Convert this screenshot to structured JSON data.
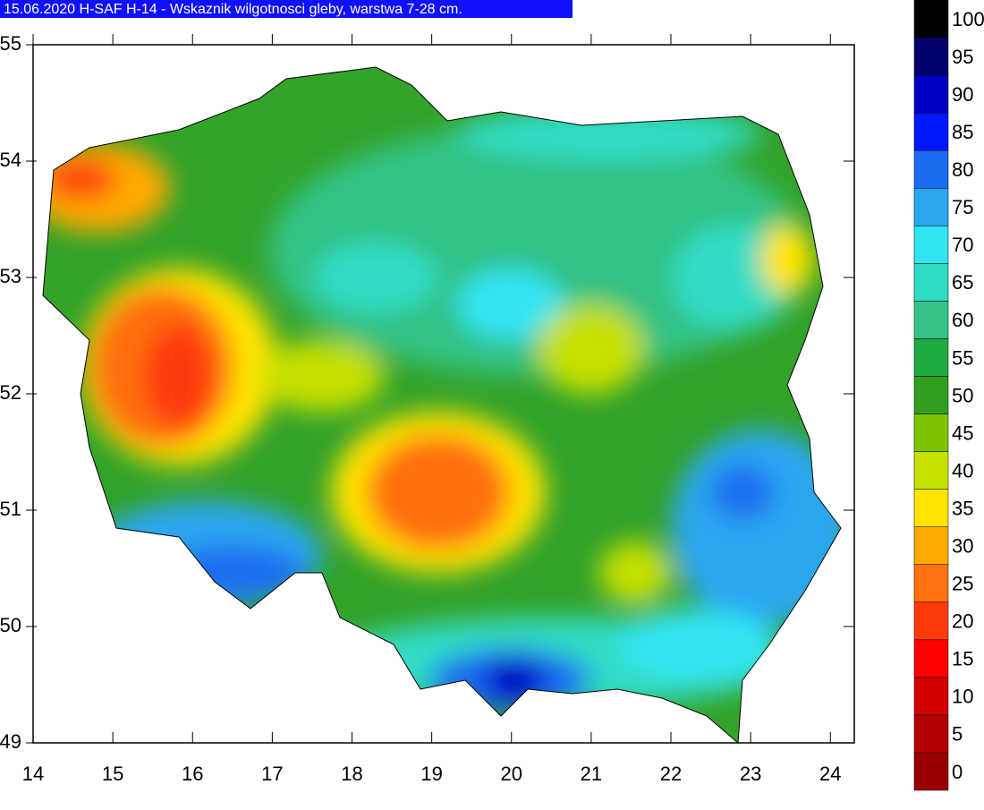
{
  "title": "15.06.2020 H-SAF H-14 - Wskaznik wilgotnosci gleby, warstwa 7-28 cm.",
  "map": {
    "xlim": [
      14,
      24.3
    ],
    "ylim": [
      49,
      55
    ],
    "xticks": [
      14,
      15,
      16,
      17,
      18,
      19,
      20,
      21,
      22,
      23,
      24
    ],
    "yticks": [
      49,
      50,
      51,
      52,
      53,
      54,
      55
    ]
  },
  "legend": {
    "levels": [
      0,
      5,
      10,
      15,
      20,
      25,
      30,
      35,
      40,
      45,
      50,
      55,
      60,
      65,
      70,
      75,
      80,
      85,
      90,
      95,
      100
    ],
    "colors": [
      "#990000",
      "#b30000",
      "#d40000",
      "#ff0000",
      "#ff3a0a",
      "#ff7010",
      "#ffa800",
      "#ffe400",
      "#c6e000",
      "#7cc400",
      "#2f9e1e",
      "#1eaa40",
      "#33c283",
      "#30dcc4",
      "#30e4f2",
      "#29a6f0",
      "#1c6cf0",
      "#0018ff",
      "#0000c4",
      "#00006e",
      "#000000"
    ]
  }
}
